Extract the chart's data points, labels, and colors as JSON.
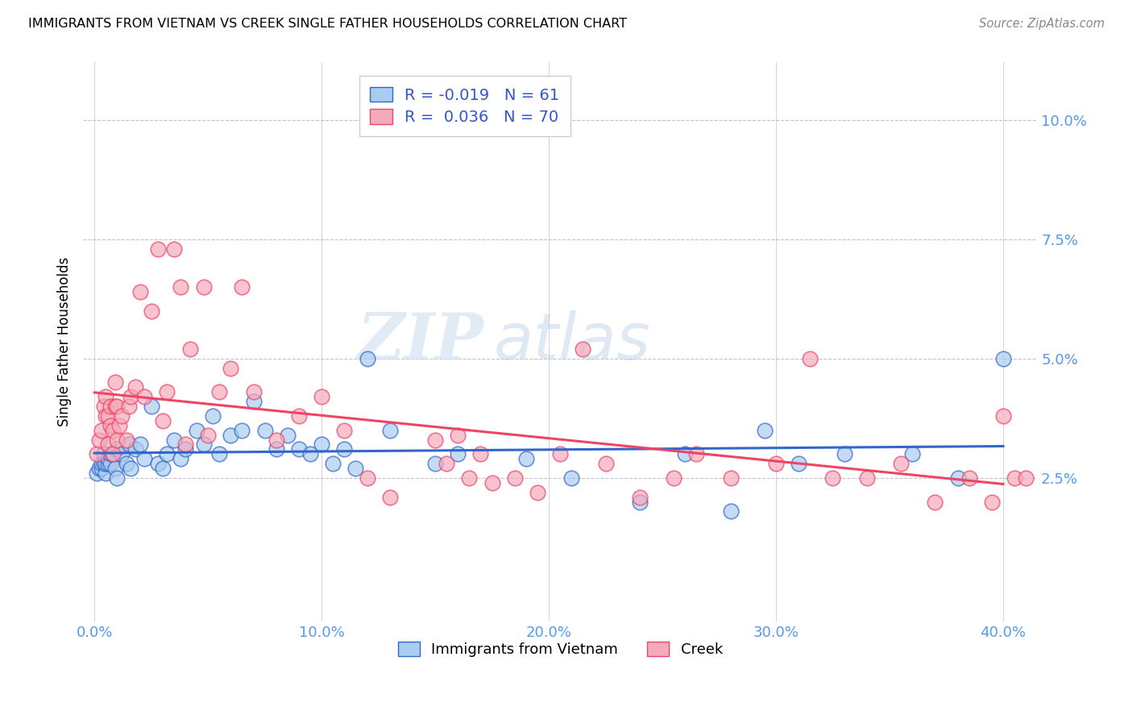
{
  "title": "IMMIGRANTS FROM VIETNAM VS CREEK SINGLE FATHER HOUSEHOLDS CORRELATION CHART",
  "source": "Source: ZipAtlas.com",
  "ylabel": "Single Father Households",
  "x_tick_labels": [
    "0.0%",
    "10.0%",
    "20.0%",
    "30.0%",
    "40.0%"
  ],
  "x_tick_values": [
    0.0,
    0.1,
    0.2,
    0.3,
    0.4
  ],
  "y_tick_labels": [
    "2.5%",
    "5.0%",
    "7.5%",
    "10.0%"
  ],
  "y_tick_values": [
    0.025,
    0.05,
    0.075,
    0.1
  ],
  "xlim": [
    -0.005,
    0.415
  ],
  "ylim": [
    -0.005,
    0.112
  ],
  "legend_label_blue": "Immigrants from Vietnam",
  "legend_label_pink": "Creek",
  "R_blue": -0.019,
  "N_blue": 61,
  "R_pink": 0.036,
  "N_pink": 70,
  "color_blue": "#AACCEE",
  "color_pink": "#F4AABB",
  "line_color_blue": "#3366CC",
  "line_color_pink": "#EE4466",
  "watermark_zip": "ZIP",
  "watermark_atlas": "atlas",
  "blue_x": [
    0.001,
    0.002,
    0.003,
    0.003,
    0.004,
    0.004,
    0.005,
    0.005,
    0.006,
    0.006,
    0.007,
    0.007,
    0.008,
    0.009,
    0.01,
    0.01,
    0.012,
    0.014,
    0.015,
    0.016,
    0.018,
    0.02,
    0.022,
    0.025,
    0.028,
    0.03,
    0.032,
    0.035,
    0.038,
    0.04,
    0.045,
    0.048,
    0.052,
    0.055,
    0.06,
    0.065,
    0.07,
    0.075,
    0.08,
    0.085,
    0.09,
    0.095,
    0.1,
    0.105,
    0.11,
    0.115,
    0.12,
    0.13,
    0.15,
    0.16,
    0.19,
    0.21,
    0.24,
    0.26,
    0.28,
    0.295,
    0.31,
    0.33,
    0.36,
    0.38,
    0.4
  ],
  "blue_y": [
    0.026,
    0.027,
    0.027,
    0.028,
    0.028,
    0.03,
    0.026,
    0.028,
    0.028,
    0.029,
    0.028,
    0.03,
    0.03,
    0.027,
    0.025,
    0.031,
    0.03,
    0.028,
    0.032,
    0.027,
    0.031,
    0.032,
    0.029,
    0.04,
    0.028,
    0.027,
    0.03,
    0.033,
    0.029,
    0.031,
    0.035,
    0.032,
    0.038,
    0.03,
    0.034,
    0.035,
    0.041,
    0.035,
    0.031,
    0.034,
    0.031,
    0.03,
    0.032,
    0.028,
    0.031,
    0.027,
    0.05,
    0.035,
    0.028,
    0.03,
    0.029,
    0.025,
    0.02,
    0.03,
    0.018,
    0.035,
    0.028,
    0.03,
    0.03,
    0.025,
    0.05
  ],
  "pink_x": [
    0.001,
    0.002,
    0.003,
    0.004,
    0.005,
    0.005,
    0.006,
    0.006,
    0.007,
    0.007,
    0.008,
    0.008,
    0.009,
    0.009,
    0.01,
    0.01,
    0.011,
    0.012,
    0.014,
    0.015,
    0.016,
    0.018,
    0.02,
    0.022,
    0.025,
    0.028,
    0.03,
    0.032,
    0.035,
    0.038,
    0.04,
    0.042,
    0.048,
    0.05,
    0.055,
    0.06,
    0.065,
    0.07,
    0.08,
    0.09,
    0.1,
    0.11,
    0.12,
    0.13,
    0.15,
    0.155,
    0.16,
    0.165,
    0.17,
    0.175,
    0.185,
    0.195,
    0.205,
    0.215,
    0.225,
    0.24,
    0.255,
    0.265,
    0.28,
    0.3,
    0.315,
    0.325,
    0.34,
    0.355,
    0.37,
    0.385,
    0.395,
    0.4,
    0.405,
    0.41
  ],
  "pink_y": [
    0.03,
    0.033,
    0.035,
    0.04,
    0.038,
    0.042,
    0.032,
    0.038,
    0.036,
    0.04,
    0.03,
    0.035,
    0.04,
    0.045,
    0.033,
    0.04,
    0.036,
    0.038,
    0.033,
    0.04,
    0.042,
    0.044,
    0.064,
    0.042,
    0.06,
    0.073,
    0.037,
    0.043,
    0.073,
    0.065,
    0.032,
    0.052,
    0.065,
    0.034,
    0.043,
    0.048,
    0.065,
    0.043,
    0.033,
    0.038,
    0.042,
    0.035,
    0.025,
    0.021,
    0.033,
    0.028,
    0.034,
    0.025,
    0.03,
    0.024,
    0.025,
    0.022,
    0.03,
    0.052,
    0.028,
    0.021,
    0.025,
    0.03,
    0.025,
    0.028,
    0.05,
    0.025,
    0.025,
    0.028,
    0.02,
    0.025,
    0.02,
    0.038,
    0.025,
    0.025
  ]
}
